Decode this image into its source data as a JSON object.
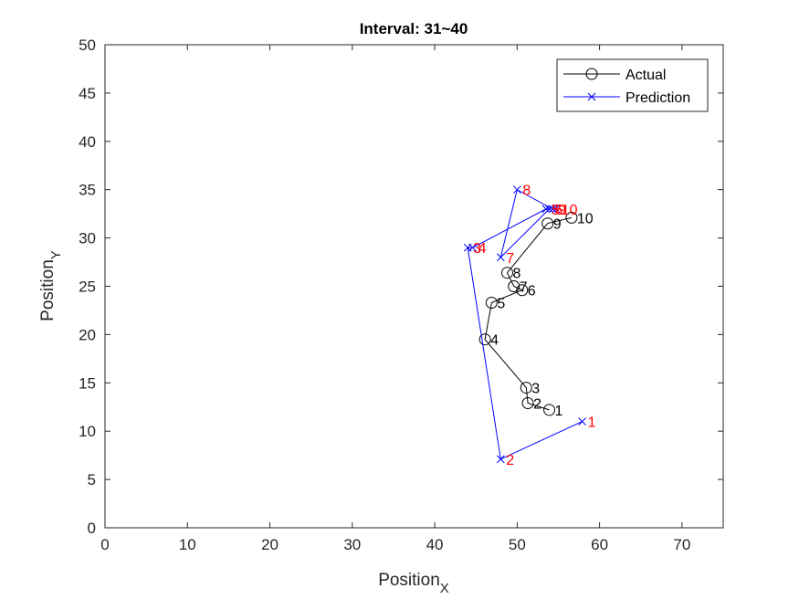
{
  "chart_data": {
    "type": "line",
    "title": "Interval: 31~40",
    "xlabel": "Position",
    "xlabel_sub": "X",
    "ylabel": "Position",
    "ylabel_sub": "Y",
    "xlim": [
      0,
      75
    ],
    "ylim": [
      0,
      50
    ],
    "xticks": [
      "0",
      "10",
      "20",
      "30",
      "40",
      "50",
      "60",
      "70"
    ],
    "yticks": [
      "0",
      "5",
      "10",
      "15",
      "20",
      "25",
      "30",
      "35",
      "40",
      "45",
      "50"
    ],
    "grid": false,
    "legend_position": "top-right",
    "series": [
      {
        "name": "Actual",
        "color": "#000000",
        "marker": "circle",
        "label_color": "#000000",
        "points": [
          {
            "label": "1",
            "x": 53.9,
            "y": 12.2
          },
          {
            "label": "2",
            "x": 51.3,
            "y": 12.9
          },
          {
            "label": "3",
            "x": 51.1,
            "y": 14.5
          },
          {
            "label": "4",
            "x": 46.1,
            "y": 19.5
          },
          {
            "label": "5",
            "x": 46.9,
            "y": 23.3
          },
          {
            "label": "6",
            "x": 50.6,
            "y": 24.6
          },
          {
            "label": "7",
            "x": 49.6,
            "y": 25.0
          },
          {
            "label": "8",
            "x": 48.8,
            "y": 26.4
          },
          {
            "label": "9",
            "x": 53.7,
            "y": 31.5
          },
          {
            "label": "10",
            "x": 56.6,
            "y": 32.1
          }
        ]
      },
      {
        "name": "Prediction",
        "color": "#0000ff",
        "marker": "x",
        "label_color": "#ff0000",
        "points": [
          {
            "label": "1",
            "x": 57.9,
            "y": 11.0
          },
          {
            "label": "2",
            "x": 48.0,
            "y": 7.1
          },
          {
            "label": "3",
            "x": 44.0,
            "y": 29.0
          },
          {
            "label": "4",
            "x": 44.6,
            "y": 29.0
          },
          {
            "label": "5",
            "x": 53.5,
            "y": 33.0
          },
          {
            "label": "6",
            "x": 53.9,
            "y": 33.0
          },
          {
            "label": "7",
            "x": 48.0,
            "y": 28.0
          },
          {
            "label": "8",
            "x": 50.0,
            "y": 35.0
          },
          {
            "label": "9",
            "x": 54.3,
            "y": 33.0
          },
          {
            "label": "10",
            "x": 54.7,
            "y": 33.0
          }
        ]
      }
    ]
  }
}
